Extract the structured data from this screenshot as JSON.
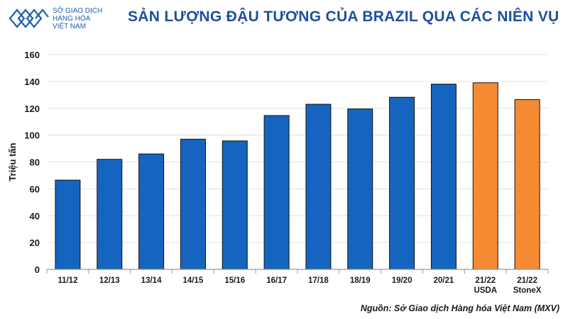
{
  "header": {
    "logo_lines": [
      "SỞ GIAO DỊCH",
      "HÀNG HÓA",
      "VIỆT NAM"
    ],
    "title": "SẢN LƯỢNG ĐẬU TƯƠNG CỦA BRAZIL QUA CÁC NIÊN VỤ",
    "colors": {
      "title": "#1f4f9e",
      "logo": "#1f5fae"
    }
  },
  "chart_data": {
    "type": "bar",
    "categories": [
      [
        "11/12"
      ],
      [
        "12/13"
      ],
      [
        "13/14"
      ],
      [
        "14/15"
      ],
      [
        "15/16"
      ],
      [
        "16/17"
      ],
      [
        "17/18"
      ],
      [
        "18/19"
      ],
      [
        "19/20"
      ],
      [
        "20/21"
      ],
      [
        "21/22",
        "USDA"
      ],
      [
        "21/22",
        "StoneX"
      ]
    ],
    "values": [
      66.5,
      82,
      86,
      97,
      95.7,
      114.6,
      123,
      119.5,
      128.2,
      138,
      139,
      126.5
    ],
    "bar_colors": [
      "#1565c0",
      "#1565c0",
      "#1565c0",
      "#1565c0",
      "#1565c0",
      "#1565c0",
      "#1565c0",
      "#1565c0",
      "#1565c0",
      "#1565c0",
      "#f58a32",
      "#f58a32"
    ],
    "ylabel": "Triệu tấn",
    "xlabel": "",
    "ylim": [
      0,
      160
    ],
    "yticks": [
      0,
      20,
      40,
      60,
      80,
      100,
      120,
      140,
      160
    ],
    "grid": true,
    "legend": "none"
  },
  "footer": {
    "source": "Nguồn: Sở Giao dịch Hàng hóa Việt Nam (MXV)"
  }
}
